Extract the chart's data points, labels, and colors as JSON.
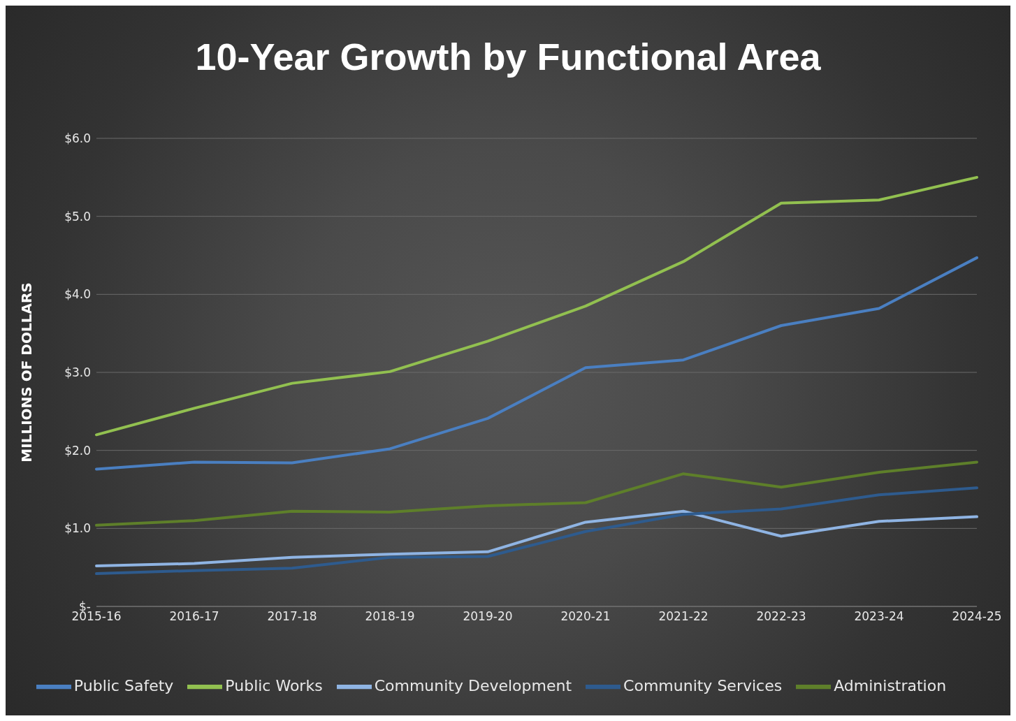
{
  "chart_data": {
    "type": "line",
    "title": "10-Year Growth by Functional Area",
    "ylabel": "MILLIONS OF DOLLARS",
    "categories": [
      "2015-16",
      "2016-17",
      "2017-18",
      "2018-19",
      "2019-20",
      "2020-21",
      "2021-22",
      "2022-23",
      "2023-24",
      "2024-25"
    ],
    "series": [
      {
        "name": "Public Safety",
        "color": "#4a7fc1",
        "values": [
          1.76,
          1.85,
          1.84,
          2.02,
          2.41,
          3.06,
          3.16,
          3.6,
          3.82,
          4.47
        ]
      },
      {
        "name": "Public Works",
        "color": "#92c050",
        "values": [
          2.2,
          2.54,
          2.86,
          3.01,
          3.4,
          3.85,
          4.42,
          5.17,
          5.21,
          5.5
        ]
      },
      {
        "name": "Community Development",
        "color": "#8fb4e3",
        "values": [
          0.52,
          0.55,
          0.63,
          0.67,
          0.7,
          1.08,
          1.22,
          0.9,
          1.09,
          1.15
        ]
      },
      {
        "name": "Community Services",
        "color": "#2e5b8e",
        "values": [
          0.42,
          0.46,
          0.49,
          0.63,
          0.64,
          0.96,
          1.18,
          1.25,
          1.43,
          1.52
        ]
      },
      {
        "name": "Administration",
        "color": "#5e7f2a",
        "values": [
          1.04,
          1.1,
          1.22,
          1.21,
          1.29,
          1.33,
          1.7,
          1.53,
          1.72,
          1.85
        ]
      }
    ],
    "ylim": [
      0,
      6
    ],
    "yticks": [
      {
        "value": 0,
        "label": "$-"
      },
      {
        "value": 1,
        "label": "$1.0"
      },
      {
        "value": 2,
        "label": "$2.0"
      },
      {
        "value": 3,
        "label": "$3.0"
      },
      {
        "value": 4,
        "label": "$4.0"
      },
      {
        "value": 5,
        "label": "$5.0"
      },
      {
        "value": 6,
        "label": "$6.0"
      }
    ],
    "grid": "y",
    "legend": "bottom",
    "marker": "none",
    "line_style": "solid"
  }
}
